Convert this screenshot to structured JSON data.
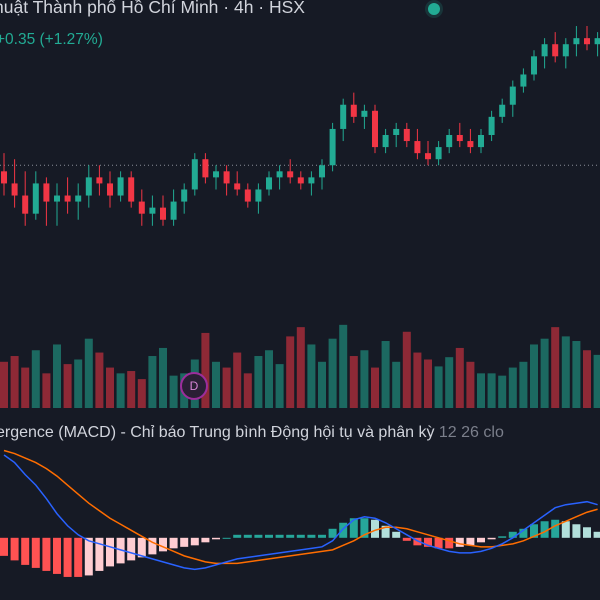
{
  "header": {
    "symbol_title": "huật Thành phố Hồ Chí Minh · 4h · HSX",
    "change_text": "+0.35 (+1.27%)",
    "status_color": "#22ab94"
  },
  "volume": {
    "dividend_badge": "D"
  },
  "macd": {
    "legend_name": "ergence (MACD) - Chỉ báo Trung bình Động hội tụ và phân kỳ",
    "legend_params": "12 26 clo"
  },
  "colors": {
    "background": "#161a25",
    "up": "#22ab94",
    "down": "#f23645",
    "macd_line": "#2962ff",
    "signal_line": "#ff6d00"
  },
  "chart_data": [
    {
      "type": "candlestick",
      "series": [
        {
          "name": "",
          "ohlc": [
            [
              26.9,
              27.2,
              26.5,
              26.7
            ],
            [
              26.7,
              27.1,
              26.3,
              26.5
            ],
            [
              26.5,
              26.9,
              26.0,
              26.2
            ],
            [
              26.2,
              26.9,
              26.1,
              26.7
            ],
            [
              26.7,
              26.8,
              26.0,
              26.4
            ],
            [
              26.4,
              26.7,
              26.0,
              26.5
            ],
            [
              26.5,
              26.8,
              26.2,
              26.4
            ],
            [
              26.4,
              26.7,
              26.1,
              26.5
            ],
            [
              26.5,
              27.0,
              26.3,
              26.8
            ],
            [
              26.8,
              27.0,
              26.5,
              26.7
            ],
            [
              26.7,
              26.9,
              26.3,
              26.5
            ],
            [
              26.5,
              26.9,
              26.4,
              26.8
            ],
            [
              26.8,
              26.9,
              26.3,
              26.4
            ],
            [
              26.4,
              26.6,
              26.0,
              26.2
            ],
            [
              26.2,
              26.5,
              26.0,
              26.3
            ],
            [
              26.3,
              26.5,
              26.0,
              26.1
            ],
            [
              26.1,
              26.6,
              26.0,
              26.4
            ],
            [
              26.4,
              26.7,
              26.2,
              26.6
            ],
            [
              26.6,
              27.2,
              26.5,
              27.1
            ],
            [
              27.1,
              27.2,
              26.7,
              26.8
            ],
            [
              26.8,
              27.0,
              26.6,
              26.9
            ],
            [
              26.9,
              27.0,
              26.5,
              26.7
            ],
            [
              26.7,
              26.9,
              26.5,
              26.6
            ],
            [
              26.6,
              26.7,
              26.3,
              26.4
            ],
            [
              26.4,
              26.7,
              26.2,
              26.6
            ],
            [
              26.6,
              26.9,
              26.5,
              26.8
            ],
            [
              26.8,
              27.0,
              26.6,
              26.9
            ],
            [
              26.9,
              27.1,
              26.7,
              26.8
            ],
            [
              26.8,
              26.9,
              26.6,
              26.7
            ],
            [
              26.7,
              26.9,
              26.5,
              26.8
            ],
            [
              26.8,
              27.1,
              26.6,
              27.0
            ],
            [
              27.0,
              27.7,
              26.9,
              27.6
            ],
            [
              27.6,
              28.1,
              27.4,
              28.0
            ],
            [
              28.0,
              28.2,
              27.7,
              27.8
            ],
            [
              27.8,
              28.0,
              27.6,
              27.9
            ],
            [
              27.9,
              28.0,
              27.2,
              27.3
            ],
            [
              27.3,
              27.6,
              27.2,
              27.5
            ],
            [
              27.5,
              27.7,
              27.3,
              27.6
            ],
            [
              27.6,
              27.7,
              27.3,
              27.4
            ],
            [
              27.4,
              27.6,
              27.1,
              27.2
            ],
            [
              27.2,
              27.4,
              27.0,
              27.1
            ],
            [
              27.1,
              27.4,
              27.0,
              27.3
            ],
            [
              27.3,
              27.6,
              27.2,
              27.5
            ],
            [
              27.5,
              27.7,
              27.3,
              27.4
            ],
            [
              27.4,
              27.6,
              27.2,
              27.3
            ],
            [
              27.3,
              27.6,
              27.2,
              27.5
            ],
            [
              27.5,
              27.9,
              27.4,
              27.8
            ],
            [
              27.8,
              28.1,
              27.7,
              28.0
            ],
            [
              28.0,
              28.4,
              27.8,
              28.3
            ],
            [
              28.3,
              28.6,
              28.2,
              28.5
            ],
            [
              28.5,
              28.9,
              28.4,
              28.8
            ],
            [
              28.8,
              29.1,
              28.6,
              29.0
            ],
            [
              29.0,
              29.2,
              28.7,
              28.8
            ],
            [
              28.8,
              29.1,
              28.6,
              29.0
            ],
            [
              29.0,
              29.3,
              28.8,
              29.1
            ],
            [
              29.1,
              29.3,
              28.9,
              29.0
            ],
            [
              29.0,
              29.2,
              28.8,
              29.1
            ]
          ]
        }
      ],
      "reference_line": 27.0,
      "ylim": [
        25.6,
        29.4
      ],
      "grid": false
    },
    {
      "type": "bar",
      "series": [
        {
          "name": "",
          "values": [
            40,
            45,
            35,
            50,
            30,
            55,
            38,
            42,
            60,
            48,
            35,
            30,
            32,
            25,
            45,
            52,
            28,
            30,
            42,
            65,
            40,
            35,
            48,
            30,
            45,
            50,
            38,
            62,
            70,
            55,
            40,
            60,
            72,
            45,
            50,
            35,
            58,
            40,
            66,
            48,
            42,
            36,
            44,
            52,
            40,
            30,
            30,
            28,
            35,
            40,
            55,
            60,
            70,
            62,
            58,
            50,
            46
          ],
          "up": [
            false,
            false,
            false,
            true,
            false,
            true,
            false,
            true,
            true,
            false,
            false,
            true,
            false,
            false,
            true,
            true,
            true,
            true,
            true,
            false,
            true,
            false,
            false,
            false,
            true,
            true,
            true,
            false,
            false,
            true,
            true,
            true,
            true,
            false,
            true,
            false,
            true,
            true,
            false,
            false,
            false,
            true,
            true,
            false,
            false,
            true,
            true,
            true,
            true,
            true,
            true,
            true,
            false,
            true,
            true,
            false,
            true
          ]
        }
      ],
      "ylim": [
        0,
        80
      ]
    },
    {
      "type": "line",
      "series": [
        {
          "name": "",
          "values": [
            0.55,
            0.5,
            0.42,
            0.35,
            0.26,
            0.16,
            0.08,
            0.02,
            -0.02,
            -0.04,
            -0.06,
            -0.08,
            -0.1,
            -0.12,
            -0.14,
            -0.16,
            -0.18,
            -0.2,
            -0.21,
            -0.2,
            -0.18,
            -0.16,
            -0.14,
            -0.13,
            -0.12,
            -0.11,
            -0.1,
            -0.09,
            -0.08,
            -0.07,
            -0.06,
            -0.02,
            0.06,
            0.12,
            0.14,
            0.13,
            0.1,
            0.06,
            0.02,
            -0.02,
            -0.05,
            -0.07,
            -0.09,
            -0.1,
            -0.1,
            -0.09,
            -0.07,
            -0.04,
            0.0,
            0.05,
            0.1,
            0.15,
            0.2,
            0.22,
            0.23,
            0.24,
            0.22
          ]
        },
        {
          "name": "",
          "values": [
            0.58,
            0.56,
            0.53,
            0.5,
            0.46,
            0.41,
            0.35,
            0.29,
            0.23,
            0.18,
            0.13,
            0.09,
            0.05,
            0.01,
            -0.03,
            -0.06,
            -0.09,
            -0.12,
            -0.14,
            -0.16,
            -0.17,
            -0.17,
            -0.17,
            -0.16,
            -0.15,
            -0.14,
            -0.13,
            -0.12,
            -0.11,
            -0.1,
            -0.09,
            -0.08,
            -0.05,
            -0.02,
            0.02,
            0.05,
            0.07,
            0.07,
            0.06,
            0.04,
            0.02,
            0.0,
            -0.02,
            -0.04,
            -0.05,
            -0.06,
            -0.06,
            -0.05,
            -0.04,
            -0.02,
            0.01,
            0.04,
            0.08,
            0.11,
            0.14,
            0.17,
            0.19
          ]
        },
        {
          "name": "",
          "type": "histogram",
          "values": [
            -0.12,
            -0.15,
            -0.18,
            -0.2,
            -0.22,
            -0.24,
            -0.26,
            -0.26,
            -0.25,
            -0.22,
            -0.19,
            -0.17,
            -0.15,
            -0.13,
            -0.11,
            -0.09,
            -0.07,
            -0.06,
            -0.05,
            -0.03,
            -0.01,
            0.0,
            0.02,
            0.02,
            0.02,
            0.02,
            0.02,
            0.02,
            0.02,
            0.02,
            0.02,
            0.06,
            0.1,
            0.13,
            0.13,
            0.12,
            0.08,
            0.04,
            -0.02,
            -0.05,
            -0.06,
            -0.07,
            -0.07,
            -0.06,
            -0.05,
            -0.03,
            -0.01,
            0.01,
            0.04,
            0.06,
            0.09,
            0.11,
            0.12,
            0.11,
            0.09,
            0.07,
            0.04
          ]
        }
      ],
      "ylim": [
        -0.4,
        0.65
      ]
    }
  ]
}
